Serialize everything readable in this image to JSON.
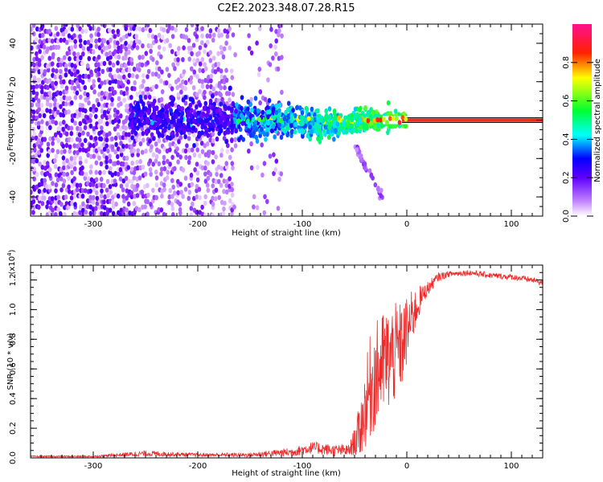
{
  "title": "C2E2.2023.348.07.28.R15",
  "colorbar": {
    "label": "Normalized spectral amplitude",
    "ticks": [
      "0.0",
      "0.2",
      "0.4",
      "0.6",
      "0.8"
    ],
    "range": [
      0,
      1
    ],
    "colors": [
      "#ffffff",
      "#7a00ff",
      "#0000ff",
      "#00ffff",
      "#00ff00",
      "#ffff00",
      "#ff0000",
      "#ff00a0"
    ]
  },
  "chart_data": [
    {
      "type": "heatmap",
      "xlabel": "Height of straight line (km)",
      "ylabel": "Frequency (Hz)",
      "xlim": [
        -360,
        130
      ],
      "ylim": [
        -50,
        50
      ],
      "xticks": [
        -300,
        -200,
        -100,
        0,
        100
      ],
      "xtick_labels": [
        "-300",
        "-200",
        "-100",
        "0",
        "100"
      ],
      "yticks": [
        -40,
        -20,
        0,
        20,
        40
      ],
      "ytick_labels": [
        "-40",
        "-20",
        "0",
        "20",
        "40"
      ],
      "features": {
        "noise_region_x": [
          -360,
          -120
        ],
        "blank_gap_x": [
          -163,
          -154
        ],
        "central_band_x": [
          -165,
          130
        ],
        "steady_line_x": [
          0,
          130
        ],
        "steady_line_freq": 0,
        "diverging_trace": [
          [
            -45,
            -15
          ],
          [
            -35,
            -30
          ],
          [
            -25,
            -40
          ]
        ]
      }
    },
    {
      "type": "line",
      "xlabel": "Height of straight line (km)",
      "ylabel": "SNR (10 * v/v)",
      "yscale_label": "(x10",
      "yscale_exp": "4",
      "yscale_suffix": ")",
      "xlim": [
        -360,
        130
      ],
      "ylim": [
        0,
        1.3
      ],
      "xticks": [
        -300,
        -200,
        -100,
        0,
        100
      ],
      "xtick_labels": [
        "-300",
        "-200",
        "-100",
        "0",
        "100"
      ],
      "yticks": [
        0.0,
        0.2,
        0.4,
        0.6,
        0.8,
        1.0,
        1.2
      ],
      "ytick_labels": [
        "0.0",
        "0.2",
        "0.4",
        "0.6",
        "0.8",
        "1.0",
        "1.2"
      ],
      "color": "#ee2a2a",
      "series": [
        {
          "x": [
            -360,
            -300,
            -250,
            -200,
            -150,
            -110,
            -90,
            -70,
            -55,
            -45,
            -35,
            -25,
            -15,
            -5,
            5,
            15,
            25,
            30,
            40,
            60,
            80,
            100,
            120,
            130
          ],
          "y": [
            0.01,
            0.01,
            0.03,
            0.02,
            0.02,
            0.04,
            0.07,
            0.05,
            0.05,
            0.18,
            0.48,
            0.62,
            0.68,
            0.75,
            0.95,
            1.1,
            1.18,
            1.22,
            1.24,
            1.25,
            1.23,
            1.22,
            1.2,
            1.18
          ],
          "noise_amp": [
            0.005,
            0.005,
            0.02,
            0.012,
            0.015,
            0.03,
            0.04,
            0.04,
            0.04,
            0.15,
            0.3,
            0.3,
            0.3,
            0.25,
            0.15,
            0.06,
            0.04,
            0.03,
            0.02,
            0.02,
            0.02,
            0.02,
            0.02,
            0.02
          ]
        }
      ]
    }
  ]
}
